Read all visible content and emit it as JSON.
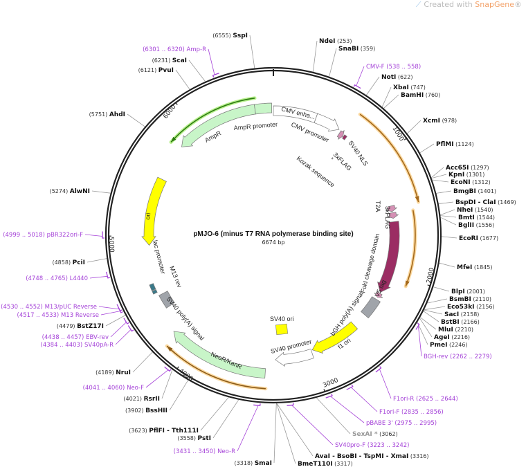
{
  "header": {
    "prefix": "Created with ",
    "brand": "SnapGene",
    "reg": "®"
  },
  "map": {
    "title": "pMJO-6 (minus T7 RNA polymerase binding site)",
    "length_label": "6674 bp",
    "length": 6674
  },
  "colors": {
    "backbone": "#222222",
    "primer": "#a543d8",
    "orf": "#e7a234",
    "green": "#c8f5c8",
    "yellow": "#ffff00",
    "maroon": "#9b2d63",
    "grey": "#a0a4aa",
    "pink": "#d590b4",
    "grey_site": "#999999"
  },
  "ticks": [
    "1000",
    "2000",
    "3000",
    "4000",
    "5000",
    "6000"
  ],
  "sites": [
    {
      "name": "NdeI",
      "pos": 253
    },
    {
      "name": "SnaBI",
      "pos": 359
    },
    {
      "name": "NotI",
      "pos": 622
    },
    {
      "name": "XbaI",
      "pos": 747
    },
    {
      "name": "BamHI",
      "pos": 760
    },
    {
      "name": "XcmI",
      "pos": 978
    },
    {
      "name": "PflMI",
      "pos": 1124
    },
    {
      "name": "Acc65I",
      "pos": 1297
    },
    {
      "name": "KpnI",
      "pos": 1301
    },
    {
      "name": "EcoNI",
      "pos": 1312
    },
    {
      "name": "BmgBI",
      "pos": 1401
    },
    {
      "name": "BspDI - ClaI",
      "pos": 1469
    },
    {
      "name": "NheI",
      "pos": 1540
    },
    {
      "name": "BmtI",
      "pos": 1544
    },
    {
      "name": "BglII",
      "pos": 1556
    },
    {
      "name": "EcoRI",
      "pos": 1677
    },
    {
      "name": "MfeI",
      "pos": 1845
    },
    {
      "name": "BlpI",
      "pos": 2001
    },
    {
      "name": "BsmBI",
      "pos": 2110
    },
    {
      "name": "Eco53kI",
      "pos": 2156
    },
    {
      "name": "SacI",
      "pos": 2158
    },
    {
      "name": "BstBI",
      "pos": 2166
    },
    {
      "name": "MluI",
      "pos": 2210
    },
    {
      "name": "AgeI",
      "pos": 2216
    },
    {
      "name": "PmeI",
      "pos": 2246
    },
    {
      "name": "SexAI *",
      "pos": 3062,
      "grey": true
    },
    {
      "name": "AvaI - BsoBI - TspMI - XmaI",
      "pos": 3316
    },
    {
      "name": "BmeT110I",
      "pos": 3317
    },
    {
      "name": "SmaI",
      "pos": 3318
    },
    {
      "name": "PstI",
      "pos": 3558
    },
    {
      "name": "PflFI - Tth111I",
      "pos": 3623
    },
    {
      "name": "BssHII",
      "pos": 3902
    },
    {
      "name": "RsrII",
      "pos": 4021
    },
    {
      "name": "NruI",
      "pos": 4189
    },
    {
      "name": "BstZ17I",
      "pos": 4479
    },
    {
      "name": "PciI",
      "pos": 4858
    },
    {
      "name": "AlwNI",
      "pos": 5274
    },
    {
      "name": "AhdI",
      "pos": 5751
    },
    {
      "name": "PvuI",
      "pos": 6121
    },
    {
      "name": "ScaI",
      "pos": 6231
    },
    {
      "name": "SspI",
      "pos": 6555
    }
  ],
  "primers": [
    {
      "name": "CMV-F",
      "range": "538 .. 558",
      "start": 538,
      "end": 558
    },
    {
      "name": "BGH-rev",
      "range": "2262 .. 2279",
      "start": 2262,
      "end": 2279
    },
    {
      "name": "F1ori-R",
      "range": "2625 .. 2644",
      "start": 2625,
      "end": 2644
    },
    {
      "name": "F1ori-F",
      "range": "2835 .. 2856",
      "start": 2835,
      "end": 2856
    },
    {
      "name": "pBABE 3'",
      "range": "2975 .. 2995",
      "start": 2975,
      "end": 2995
    },
    {
      "name": "SV40pro-F",
      "range": "3223 .. 3242",
      "start": 3223,
      "end": 3242
    },
    {
      "name": "Neo-R",
      "range": "3431 .. 3450",
      "start": 3431,
      "end": 3450
    },
    {
      "name": "Neo-F",
      "range": "4041 .. 4060",
      "start": 4041,
      "end": 4060
    },
    {
      "name": "SV40pA-R",
      "range": "4384 .. 4403",
      "start": 4384,
      "end": 4403
    },
    {
      "name": "EBV-rev",
      "range": "4438 .. 4457",
      "start": 4438,
      "end": 4457
    },
    {
      "name": "M13 Reverse",
      "range": "4517 .. 4533",
      "start": 4517,
      "end": 4533
    },
    {
      "name": "M13/pUC Reverse",
      "range": "4530 .. 4552",
      "start": 4530,
      "end": 4552
    },
    {
      "name": "L4440",
      "range": "4748 .. 4765",
      "start": 4748,
      "end": 4765
    },
    {
      "name": "pBR322ori-F",
      "range": "4999 .. 5018",
      "start": 4999,
      "end": 5018
    },
    {
      "name": "Amp-R",
      "range": "6301 .. 6320",
      "start": 6301,
      "end": 6320
    }
  ],
  "features": {
    "ampr_promoter": "AmpR promoter",
    "ampr": "AmpR",
    "cmv_enh": "CMV enha...",
    "cmv_promoter": "CMV promoter",
    "flag1": "3xFLAG",
    "sv40_nls": "SV40 NLS",
    "kozak": "Kozak sequence",
    "t2a": "T2A",
    "flag2": "3xFLAG",
    "foki": "FokI cleavage domain",
    "v5": "V5 tag",
    "bgh": "bGH poly(A) signal",
    "f1ori": "f1 ori",
    "sv40_promoter": "SV40 promoter",
    "sv40_ori": "SV40 ori",
    "neor": "NeoR/KanR",
    "sv40_pa": "SV40 poly(A) signal",
    "m13rev": "M13 rev",
    "lac": "lac promoter",
    "ori": "ori"
  }
}
